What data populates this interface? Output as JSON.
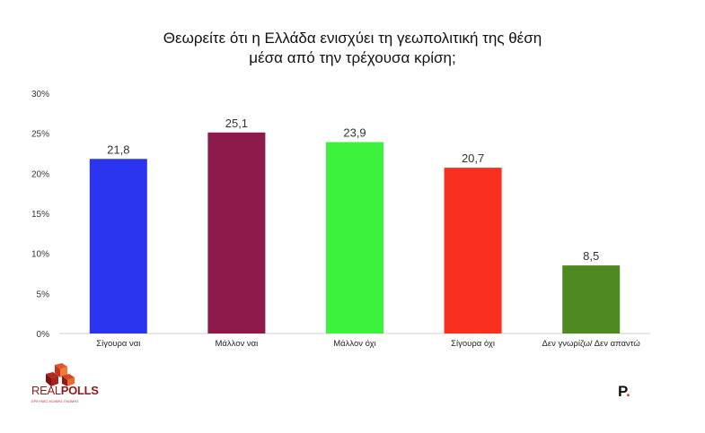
{
  "title_line1": "Θεωρείτε ότι η Ελλάδα ενισχύει τη γεωπολιτική της θέση",
  "title_line2": "μέσα από την τρέχουσα κρίση;",
  "chart_data": {
    "type": "bar",
    "title": "Θεωρείτε ότι η Ελλάδα ενισχύει τη γεωπολιτική της θέση μέσα από την τρέχουσα κρίση;",
    "categories": [
      "Σίγουρα ναι",
      "Μάλλον ναι",
      "Μάλλον όχι",
      "Σίγουρα όχι",
      "Δεν γνωρίζω/ Δεν απαντώ"
    ],
    "values": [
      21.8,
      25.1,
      23.9,
      20.7,
      8.5
    ],
    "value_labels": [
      "21,8",
      "25,1",
      "23,9",
      "20,7",
      "8,5"
    ],
    "colors": [
      "#2b35f0",
      "#8d1a4a",
      "#3cf23c",
      "#f9301e",
      "#4f8a21"
    ],
    "yticks": [
      "0%",
      "5%",
      "10%",
      "15%",
      "20%",
      "25%",
      "30%"
    ],
    "ylim": [
      0,
      30
    ],
    "grid": false,
    "xlabel": "",
    "ylabel": ""
  },
  "logos": {
    "realpolls_word_a": "REAL",
    "realpolls_word_b": "POLLS",
    "realpolls_tagline": "ΕΡΕΥΝΕΣ ΚΟΙΝΗΣ ΓΝΩΜΗΣ",
    "publisher_letter": "P",
    "publisher_dot": "."
  }
}
